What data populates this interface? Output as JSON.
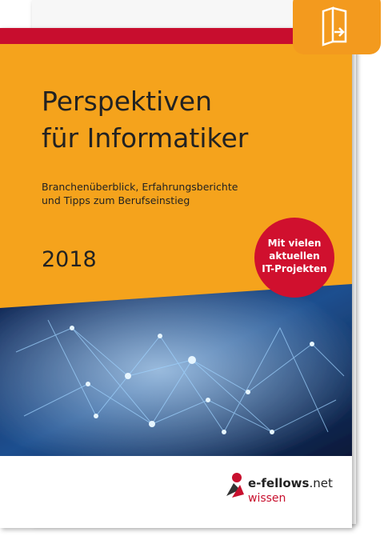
{
  "cover": {
    "title": [
      "Perspektiven",
      "für Informatiker"
    ],
    "subtitle": [
      "Branchenüberblick, Erfahrungsberichte",
      "und Tipps zum Berufseinstieg"
    ],
    "year": "2018",
    "badge": [
      "Mit vielen",
      "aktuellen",
      "IT-Projekten"
    ],
    "publisher": {
      "name": "e-fellows",
      "suffix": ".net",
      "line2": "wissen"
    }
  }
}
